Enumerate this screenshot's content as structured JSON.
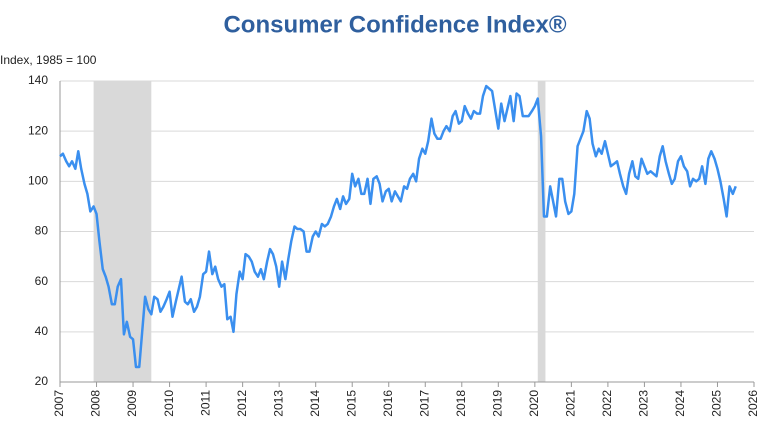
{
  "chart_data": {
    "type": "line",
    "title": "Consumer Confidence Index®",
    "y_label": "Index, 1985 = 100",
    "x": [
      2007.0,
      2007.08,
      2007.17,
      2007.25,
      2007.33,
      2007.42,
      2007.5,
      2007.58,
      2007.67,
      2007.75,
      2007.83,
      2007.92,
      2008.0,
      2008.08,
      2008.17,
      2008.25,
      2008.33,
      2008.42,
      2008.5,
      2008.58,
      2008.67,
      2008.75,
      2008.83,
      2008.92,
      2009.0,
      2009.08,
      2009.17,
      2009.25,
      2009.33,
      2009.42,
      2009.5,
      2009.58,
      2009.67,
      2009.75,
      2009.83,
      2009.92,
      2010.0,
      2010.08,
      2010.17,
      2010.25,
      2010.33,
      2010.42,
      2010.5,
      2010.58,
      2010.67,
      2010.75,
      2010.83,
      2010.92,
      2011.0,
      2011.08,
      2011.17,
      2011.25,
      2011.33,
      2011.42,
      2011.5,
      2011.58,
      2011.67,
      2011.75,
      2011.83,
      2011.92,
      2012.0,
      2012.08,
      2012.17,
      2012.25,
      2012.33,
      2012.42,
      2012.5,
      2012.58,
      2012.67,
      2012.75,
      2012.83,
      2012.92,
      2013.0,
      2013.08,
      2013.17,
      2013.25,
      2013.33,
      2013.42,
      2013.5,
      2013.58,
      2013.67,
      2013.75,
      2013.83,
      2013.92,
      2014.0,
      2014.08,
      2014.17,
      2014.25,
      2014.33,
      2014.42,
      2014.5,
      2014.58,
      2014.67,
      2014.75,
      2014.83,
      2014.92,
      2015.0,
      2015.08,
      2015.17,
      2015.25,
      2015.33,
      2015.42,
      2015.5,
      2015.58,
      2015.67,
      2015.75,
      2015.83,
      2015.92,
      2016.0,
      2016.08,
      2016.17,
      2016.25,
      2016.33,
      2016.42,
      2016.5,
      2016.58,
      2016.67,
      2016.75,
      2016.83,
      2016.92,
      2017.0,
      2017.08,
      2017.17,
      2017.25,
      2017.33,
      2017.42,
      2017.5,
      2017.58,
      2017.67,
      2017.75,
      2017.83,
      2017.92,
      2018.0,
      2018.08,
      2018.17,
      2018.25,
      2018.33,
      2018.42,
      2018.5,
      2018.58,
      2018.67,
      2018.75,
      2018.83,
      2018.92,
      2019.0,
      2019.08,
      2019.17,
      2019.25,
      2019.33,
      2019.42,
      2019.5,
      2019.58,
      2019.67,
      2019.75,
      2019.83,
      2019.92,
      2020.0,
      2020.08,
      2020.17,
      2020.25,
      2020.33,
      2020.42,
      2020.5,
      2020.58,
      2020.67,
      2020.75,
      2020.83,
      2020.92,
      2021.0,
      2021.08,
      2021.17,
      2021.25,
      2021.33,
      2021.42,
      2021.5,
      2021.58,
      2021.67,
      2021.75,
      2021.83,
      2021.92,
      2022.0,
      2022.08,
      2022.17,
      2022.25,
      2022.33,
      2022.42,
      2022.5,
      2022.58,
      2022.67,
      2022.75,
      2022.83,
      2022.92,
      2023.0,
      2023.08,
      2023.17,
      2023.25,
      2023.33,
      2023.42,
      2023.5,
      2023.58,
      2023.67,
      2023.75,
      2023.83,
      2023.92,
      2024.0,
      2024.08,
      2024.17,
      2024.25,
      2024.33,
      2024.42,
      2024.5,
      2024.58,
      2024.67,
      2024.75,
      2024.83,
      2024.92,
      2025.0,
      2025.08,
      2025.17,
      2025.25,
      2025.33,
      2025.42,
      2025.5
    ],
    "series": [
      {
        "color": "#3a8fef",
        "values": [
          110,
          111,
          108,
          106,
          108,
          105,
          112,
          105,
          99,
          95,
          88,
          90,
          87,
          76,
          65,
          62,
          58,
          51,
          51,
          58,
          61,
          39,
          44,
          38,
          37,
          26,
          26,
          40,
          54,
          49,
          47,
          54,
          53,
          48,
          50,
          53,
          56,
          46,
          52,
          57,
          62,
          52,
          51,
          53,
          48,
          50,
          54,
          63,
          64,
          72,
          63,
          66,
          61,
          58,
          59,
          45,
          46,
          40,
          55,
          64,
          61,
          71,
          70,
          68,
          64,
          62,
          65,
          61,
          68,
          73,
          71,
          66,
          58,
          68,
          61,
          69,
          76,
          82,
          81,
          81,
          80,
          72,
          72,
          78,
          80,
          78,
          83,
          82,
          83,
          86,
          90,
          93,
          89,
          94,
          91,
          93,
          103,
          98,
          101,
          95,
          95,
          101,
          91,
          101,
          102,
          99,
          92,
          96,
          97,
          92,
          96,
          94,
          92,
          98,
          97,
          101,
          103,
          100,
          109,
          113,
          111,
          116,
          125,
          119,
          117,
          117,
          120,
          122,
          120,
          126,
          128,
          123,
          124,
          130,
          127,
          125,
          128,
          127,
          127,
          134,
          138,
          137,
          136,
          128,
          121,
          131,
          124,
          129,
          134,
          124,
          135,
          134,
          126,
          126,
          126,
          128,
          130,
          133,
          118,
          86,
          86,
          98,
          92,
          86,
          101,
          101,
          92,
          87,
          88,
          95,
          114,
          117,
          120,
          128,
          125,
          115,
          110,
          113,
          111,
          116,
          111,
          106,
          107,
          108,
          103,
          98,
          95,
          103,
          108,
          102,
          101,
          109,
          106,
          103,
          104,
          103,
          102,
          110,
          114,
          108,
          103,
          99,
          101,
          108,
          110,
          106,
          104,
          98,
          101,
          100,
          101,
          106,
          99,
          109,
          112,
          109,
          105,
          100,
          93,
          86,
          98,
          95,
          98
        ]
      }
    ],
    "shaded_regions": [
      [
        2007.92,
        2009.5
      ],
      [
        2020.08,
        2020.29
      ]
    ],
    "shade_color": "#d9d9d9",
    "xlim": [
      2007,
      2026
    ],
    "xticks": [
      2007,
      2008,
      2009,
      2010,
      2011,
      2012,
      2013,
      2014,
      2015,
      2016,
      2017,
      2018,
      2019,
      2020,
      2021,
      2022,
      2023,
      2024,
      2025,
      2026
    ],
    "ylim": [
      20,
      140
    ],
    "yticks": [
      20,
      40,
      60,
      80,
      100,
      120,
      140
    ],
    "grid": true
  }
}
